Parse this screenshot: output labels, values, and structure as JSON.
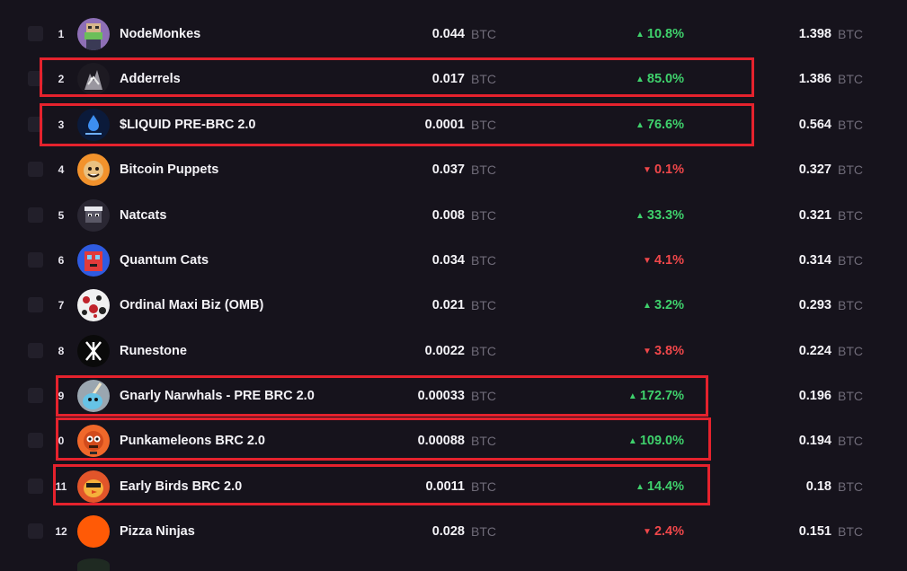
{
  "currency_unit": "BTC",
  "colors": {
    "background": "#16131c",
    "positive": "#3fd16c",
    "negative": "#f0474a",
    "highlight": "#e5222d",
    "muted": "#6f6b78"
  },
  "rows": [
    {
      "rank": "1",
      "name": "NodeMonkes",
      "price": "0.044",
      "change": "10.8%",
      "direction": "up",
      "volume": "1.398",
      "icon": "nodemonkes-avatar-icon"
    },
    {
      "rank": "2",
      "name": "Adderrels",
      "price": "0.017",
      "change": "85.0%",
      "direction": "up",
      "volume": "1.386",
      "icon": "adderrels-avatar-icon"
    },
    {
      "rank": "3",
      "name": "$LIQUID PRE-BRC 2.0",
      "price": "0.0001",
      "change": "76.6%",
      "direction": "up",
      "volume": "0.564",
      "icon": "liquid-avatar-icon"
    },
    {
      "rank": "4",
      "name": "Bitcoin Puppets",
      "price": "0.037",
      "change": "0.1%",
      "direction": "down",
      "volume": "0.327",
      "icon": "bitcoin-puppets-avatar-icon"
    },
    {
      "rank": "5",
      "name": "Natcats",
      "price": "0.008",
      "change": "33.3%",
      "direction": "up",
      "volume": "0.321",
      "icon": "natcats-avatar-icon"
    },
    {
      "rank": "6",
      "name": "Quantum Cats",
      "price": "0.034",
      "change": "4.1%",
      "direction": "down",
      "volume": "0.314",
      "icon": "quantum-cats-avatar-icon"
    },
    {
      "rank": "7",
      "name": "Ordinal Maxi Biz (OMB)",
      "price": "0.021",
      "change": "3.2%",
      "direction": "up",
      "volume": "0.293",
      "icon": "omb-avatar-icon"
    },
    {
      "rank": "8",
      "name": "Runestone",
      "price": "0.0022",
      "change": "3.8%",
      "direction": "down",
      "volume": "0.224",
      "icon": "runestone-avatar-icon"
    },
    {
      "rank": "9",
      "name": "Gnarly Narwhals - PRE BRC 2.0",
      "price": "0.00033",
      "change": "172.7%",
      "direction": "up",
      "volume": "0.196",
      "icon": "gnarly-narwhals-avatar-icon"
    },
    {
      "rank": "0",
      "name": "Punkameleons BRC 2.0",
      "price": "0.00088",
      "change": "109.0%",
      "direction": "up",
      "volume": "0.194",
      "icon": "punkameleons-avatar-icon"
    },
    {
      "rank": "11",
      "name": "Early Birds BRC 2.0",
      "price": "0.0011",
      "change": "14.4%",
      "direction": "up",
      "volume": "0.18",
      "icon": "early-birds-avatar-icon"
    },
    {
      "rank": "12",
      "name": "Pizza Ninjas",
      "price": "0.028",
      "change": "2.4%",
      "direction": "down",
      "volume": "0.151",
      "icon": "pizza-ninjas-avatar-icon"
    }
  ],
  "arrows": {
    "up": "▲",
    "down": "▼"
  }
}
